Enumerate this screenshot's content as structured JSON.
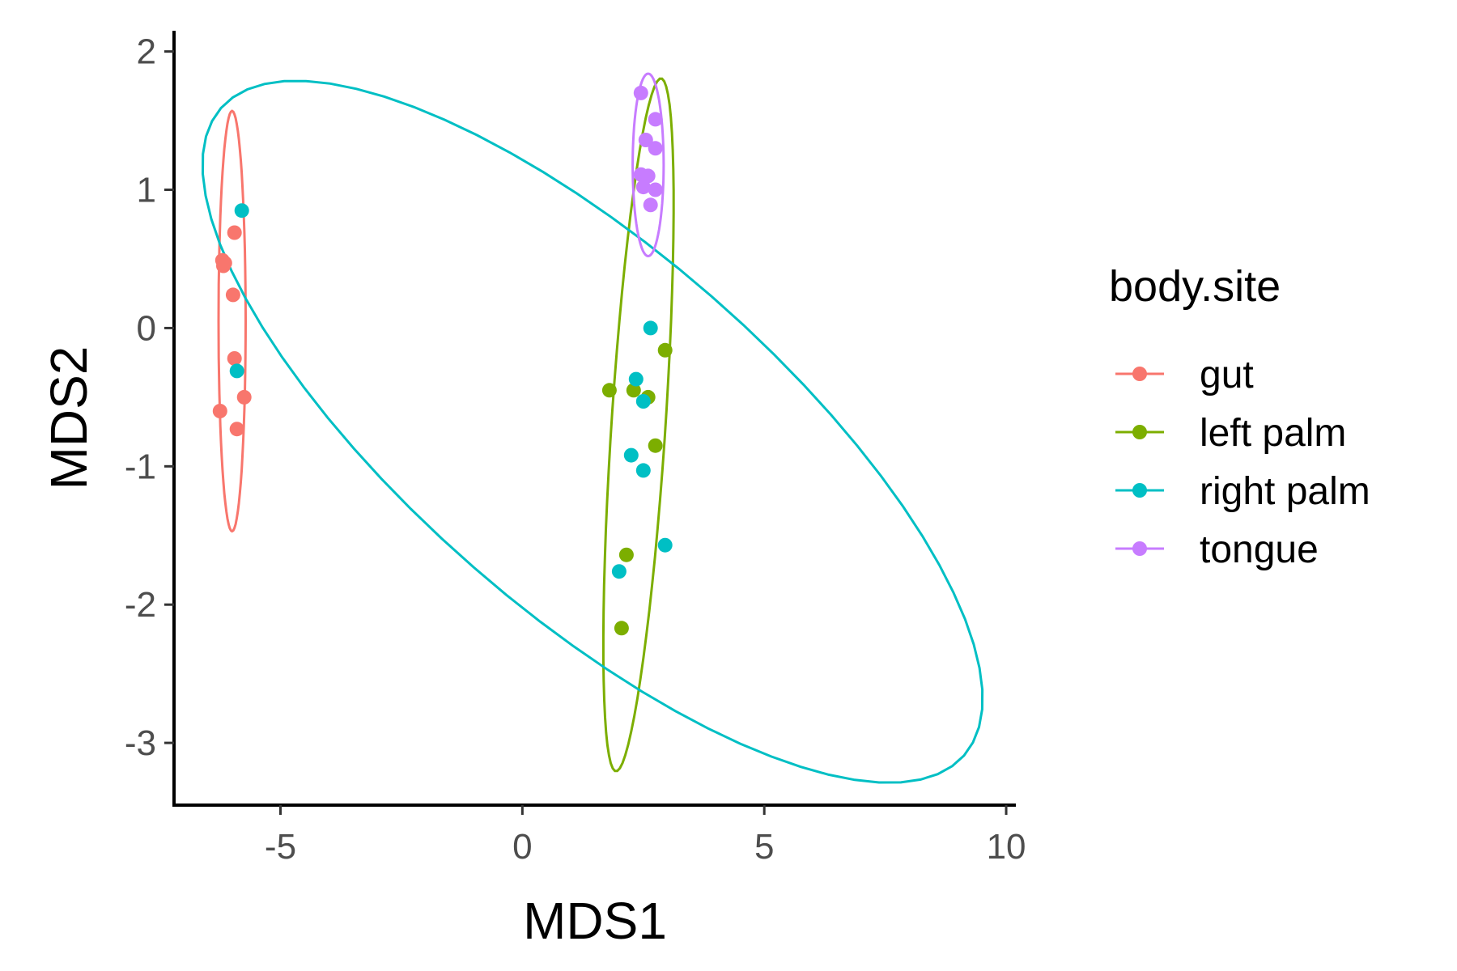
{
  "chart_data": {
    "type": "scatter",
    "xlabel": "MDS1",
    "ylabel": "MDS2",
    "xlim": [
      -7.2,
      10.2
    ],
    "ylim": [
      -3.45,
      2.15
    ],
    "x_ticks": [
      -5,
      0,
      5,
      10
    ],
    "y_ticks": [
      -3,
      -2,
      -1,
      0,
      1,
      2
    ],
    "x_tick_labels": [
      "-5",
      "0",
      "5",
      "10"
    ],
    "y_tick_labels": [
      "-3",
      "-2",
      "-1",
      "0",
      "1",
      "2"
    ],
    "grid": false,
    "legend": {
      "title": "body.site",
      "position": "right"
    },
    "series": [
      {
        "name": "gut",
        "color": "#F8766D",
        "points": [
          [
            -5.95,
            0.69
          ],
          [
            -6.2,
            0.49
          ],
          [
            -6.15,
            0.47
          ],
          [
            -6.18,
            0.45
          ],
          [
            -5.98,
            0.24
          ],
          [
            -5.95,
            -0.22
          ],
          [
            -5.75,
            -0.5
          ],
          [
            -6.25,
            -0.6
          ],
          [
            -5.9,
            -0.73
          ]
        ],
        "ellipse": {
          "center": [
            -6.0,
            0.05
          ],
          "semi_axes": [
            0.28,
            1.52
          ],
          "angle_deg": 0
        }
      },
      {
        "name": "left palm",
        "color": "#7CAE00",
        "points": [
          [
            2.95,
            -0.16
          ],
          [
            1.8,
            -0.45
          ],
          [
            2.3,
            -0.45
          ],
          [
            2.6,
            -0.5
          ],
          [
            2.75,
            -0.85
          ],
          [
            2.15,
            -1.64
          ],
          [
            2.05,
            -2.17
          ]
        ],
        "ellipse": {
          "center": [
            2.4,
            -0.7
          ],
          "semi_axes": [
            0.55,
            2.55
          ],
          "angle_deg": -11
        }
      },
      {
        "name": "right palm",
        "color": "#00BFC4",
        "points": [
          [
            -5.8,
            0.85
          ],
          [
            -5.9,
            -0.31
          ],
          [
            2.65,
            0.0
          ],
          [
            2.35,
            -0.37
          ],
          [
            2.5,
            -0.53
          ],
          [
            2.25,
            -0.92
          ],
          [
            2.5,
            -1.03
          ],
          [
            2.95,
            -1.57
          ],
          [
            2.0,
            -1.76
          ]
        ],
        "ellipse": {
          "center": [
            1.45,
            -0.75
          ],
          "semi_axes": [
            8.3,
            1.6
          ],
          "angle_deg": -14
        }
      },
      {
        "name": "tongue",
        "color": "#C77CFF",
        "points": [
          [
            2.45,
            1.7
          ],
          [
            2.75,
            1.51
          ],
          [
            2.55,
            1.36
          ],
          [
            2.75,
            1.3
          ],
          [
            2.45,
            1.11
          ],
          [
            2.6,
            1.1
          ],
          [
            2.5,
            1.02
          ],
          [
            2.75,
            1.0
          ],
          [
            2.65,
            0.89
          ]
        ],
        "ellipse": {
          "center": [
            2.6,
            1.18
          ],
          "semi_axes": [
            0.32,
            0.66
          ],
          "angle_deg": 0
        }
      }
    ]
  }
}
